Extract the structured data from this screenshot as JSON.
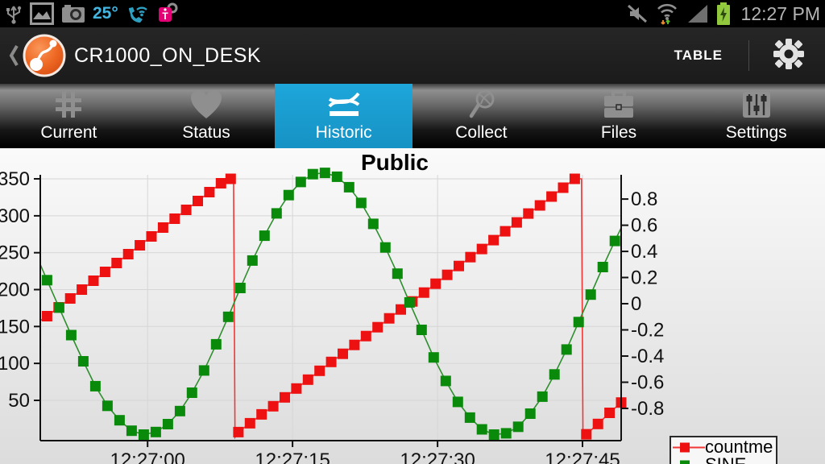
{
  "status_bar": {
    "time": "12:27 PM",
    "temperature": "25°",
    "left_icons": [
      "usb-icon",
      "gallery-icon",
      "camera-icon",
      "temperature-text",
      "phone-wifi-icon",
      "tmobile-key-icon"
    ],
    "right_icons": [
      "mute-icon",
      "wifi-arrows-icon",
      "signal-icon",
      "battery-charging-icon"
    ]
  },
  "app_bar": {
    "title": "CR1000_ON_DESK",
    "action_table": "TABLE"
  },
  "tabs": [
    {
      "label": "Current",
      "selected": false
    },
    {
      "label": "Status",
      "selected": false
    },
    {
      "label": "Historic",
      "selected": true
    },
    {
      "label": "Collect",
      "selected": false
    },
    {
      "label": "Files",
      "selected": false
    },
    {
      "label": "Settings",
      "selected": false
    }
  ],
  "colors": {
    "accent_blue": "#189bd0",
    "series_red": "#ee1111",
    "series_green": "#0a8a0a",
    "tmobile_magenta": "#e20074",
    "battery_green": "#92c83e",
    "status_blue": "#45b6e0"
  },
  "chart_data": {
    "type": "line",
    "title": "Public",
    "legend_position": "right",
    "grid": true,
    "x_axis": {
      "range_s": [
        -11.1,
        49.0
      ],
      "ticks": [
        {
          "s": 0,
          "label": "12:27:00"
        },
        {
          "s": 15,
          "label": "12:27:15"
        },
        {
          "s": 30,
          "label": "12:27:30"
        },
        {
          "s": 45,
          "label": "12:27:45"
        }
      ]
    },
    "y_left": {
      "range": [
        -4.6,
        355.5
      ],
      "ticks": [
        50,
        100,
        150,
        200,
        250,
        300,
        350
      ]
    },
    "y_right": {
      "range": [
        -1.046,
        0.985
      ],
      "ticks": [
        -0.8,
        -0.6,
        -0.4,
        -0.2,
        0,
        0.2,
        0.4,
        0.6,
        0.8
      ]
    },
    "series": [
      {
        "name": "countme",
        "axis": "left",
        "color": "#ee1111",
        "line_color": "#f23535",
        "marker": "square",
        "points": [
          [
            -11.1,
            158,
            0
          ],
          [
            -10.4,
            164
          ],
          [
            -9.2,
            176
          ],
          [
            -8.0,
            188
          ],
          [
            -6.8,
            200
          ],
          [
            -5.6,
            212
          ],
          [
            -4.4,
            224
          ],
          [
            -3.2,
            236
          ],
          [
            -2.0,
            248
          ],
          [
            -0.8,
            260
          ],
          [
            0.4,
            272
          ],
          [
            1.6,
            284
          ],
          [
            2.8,
            296
          ],
          [
            4.0,
            308
          ],
          [
            5.2,
            320
          ],
          [
            6.4,
            332
          ],
          [
            7.6,
            344
          ],
          [
            8.6,
            350
          ],
          [
            8.9,
            350,
            0
          ],
          [
            9.05,
            0,
            0
          ],
          [
            9.4,
            7
          ],
          [
            10.6,
            19
          ],
          [
            11.8,
            31
          ],
          [
            13.0,
            42
          ],
          [
            14.2,
            54
          ],
          [
            15.4,
            66
          ],
          [
            16.6,
            78
          ],
          [
            17.8,
            90
          ],
          [
            19.0,
            102
          ],
          [
            20.2,
            113
          ],
          [
            21.4,
            125
          ],
          [
            22.6,
            137
          ],
          [
            23.8,
            149
          ],
          [
            25.0,
            161
          ],
          [
            26.2,
            173
          ],
          [
            27.4,
            184
          ],
          [
            28.6,
            196
          ],
          [
            29.8,
            208
          ],
          [
            31.0,
            220
          ],
          [
            32.2,
            232
          ],
          [
            33.4,
            244
          ],
          [
            34.6,
            255
          ],
          [
            35.8,
            267
          ],
          [
            37.0,
            279
          ],
          [
            38.2,
            291
          ],
          [
            39.4,
            303
          ],
          [
            40.6,
            314
          ],
          [
            41.8,
            326
          ],
          [
            43.0,
            338
          ],
          [
            44.2,
            350
          ],
          [
            44.9,
            350,
            0
          ],
          [
            45.05,
            0,
            0
          ],
          [
            45.4,
            4
          ],
          [
            46.6,
            18
          ],
          [
            47.8,
            33
          ],
          [
            49.0,
            47
          ]
        ]
      },
      {
        "name": "SINE",
        "axis": "right",
        "color": "#0a8a0a",
        "line_color": "#2f8f2f",
        "marker": "square",
        "points": [
          [
            -11.1,
            0.3,
            0
          ],
          [
            -10.4,
            0.18
          ],
          [
            -9.15,
            -0.03
          ],
          [
            -7.9,
            -0.24
          ],
          [
            -6.65,
            -0.44
          ],
          [
            -5.4,
            -0.63
          ],
          [
            -4.15,
            -0.78
          ],
          [
            -2.9,
            -0.89
          ],
          [
            -1.65,
            -0.97
          ],
          [
            -0.4,
            -1.0
          ],
          [
            0.85,
            -0.98
          ],
          [
            2.1,
            -0.92
          ],
          [
            3.35,
            -0.82
          ],
          [
            4.6,
            -0.68
          ],
          [
            5.85,
            -0.51
          ],
          [
            7.1,
            -0.31
          ],
          [
            8.35,
            -0.1
          ],
          [
            9.6,
            0.12
          ],
          [
            10.85,
            0.33
          ],
          [
            12.1,
            0.52
          ],
          [
            13.35,
            0.69
          ],
          [
            14.6,
            0.83
          ],
          [
            15.85,
            0.93
          ],
          [
            17.1,
            0.99
          ],
          [
            18.35,
            1.0
          ],
          [
            19.6,
            0.97
          ],
          [
            20.85,
            0.89
          ],
          [
            22.1,
            0.77
          ],
          [
            23.35,
            0.61
          ],
          [
            24.6,
            0.43
          ],
          [
            25.85,
            0.23
          ],
          [
            27.1,
            0.01
          ],
          [
            28.35,
            -0.2
          ],
          [
            29.6,
            -0.41
          ],
          [
            30.85,
            -0.59
          ],
          [
            32.1,
            -0.75
          ],
          [
            33.35,
            -0.87
          ],
          [
            34.6,
            -0.96
          ],
          [
            35.85,
            -1.0
          ],
          [
            37.1,
            -0.99
          ],
          [
            38.35,
            -0.94
          ],
          [
            39.6,
            -0.84
          ],
          [
            40.85,
            -0.71
          ],
          [
            42.1,
            -0.54
          ],
          [
            43.35,
            -0.35
          ],
          [
            44.6,
            -0.14
          ],
          [
            45.85,
            0.07
          ],
          [
            47.1,
            0.28
          ],
          [
            48.35,
            0.48
          ],
          [
            49.0,
            0.58,
            0
          ]
        ]
      }
    ]
  }
}
